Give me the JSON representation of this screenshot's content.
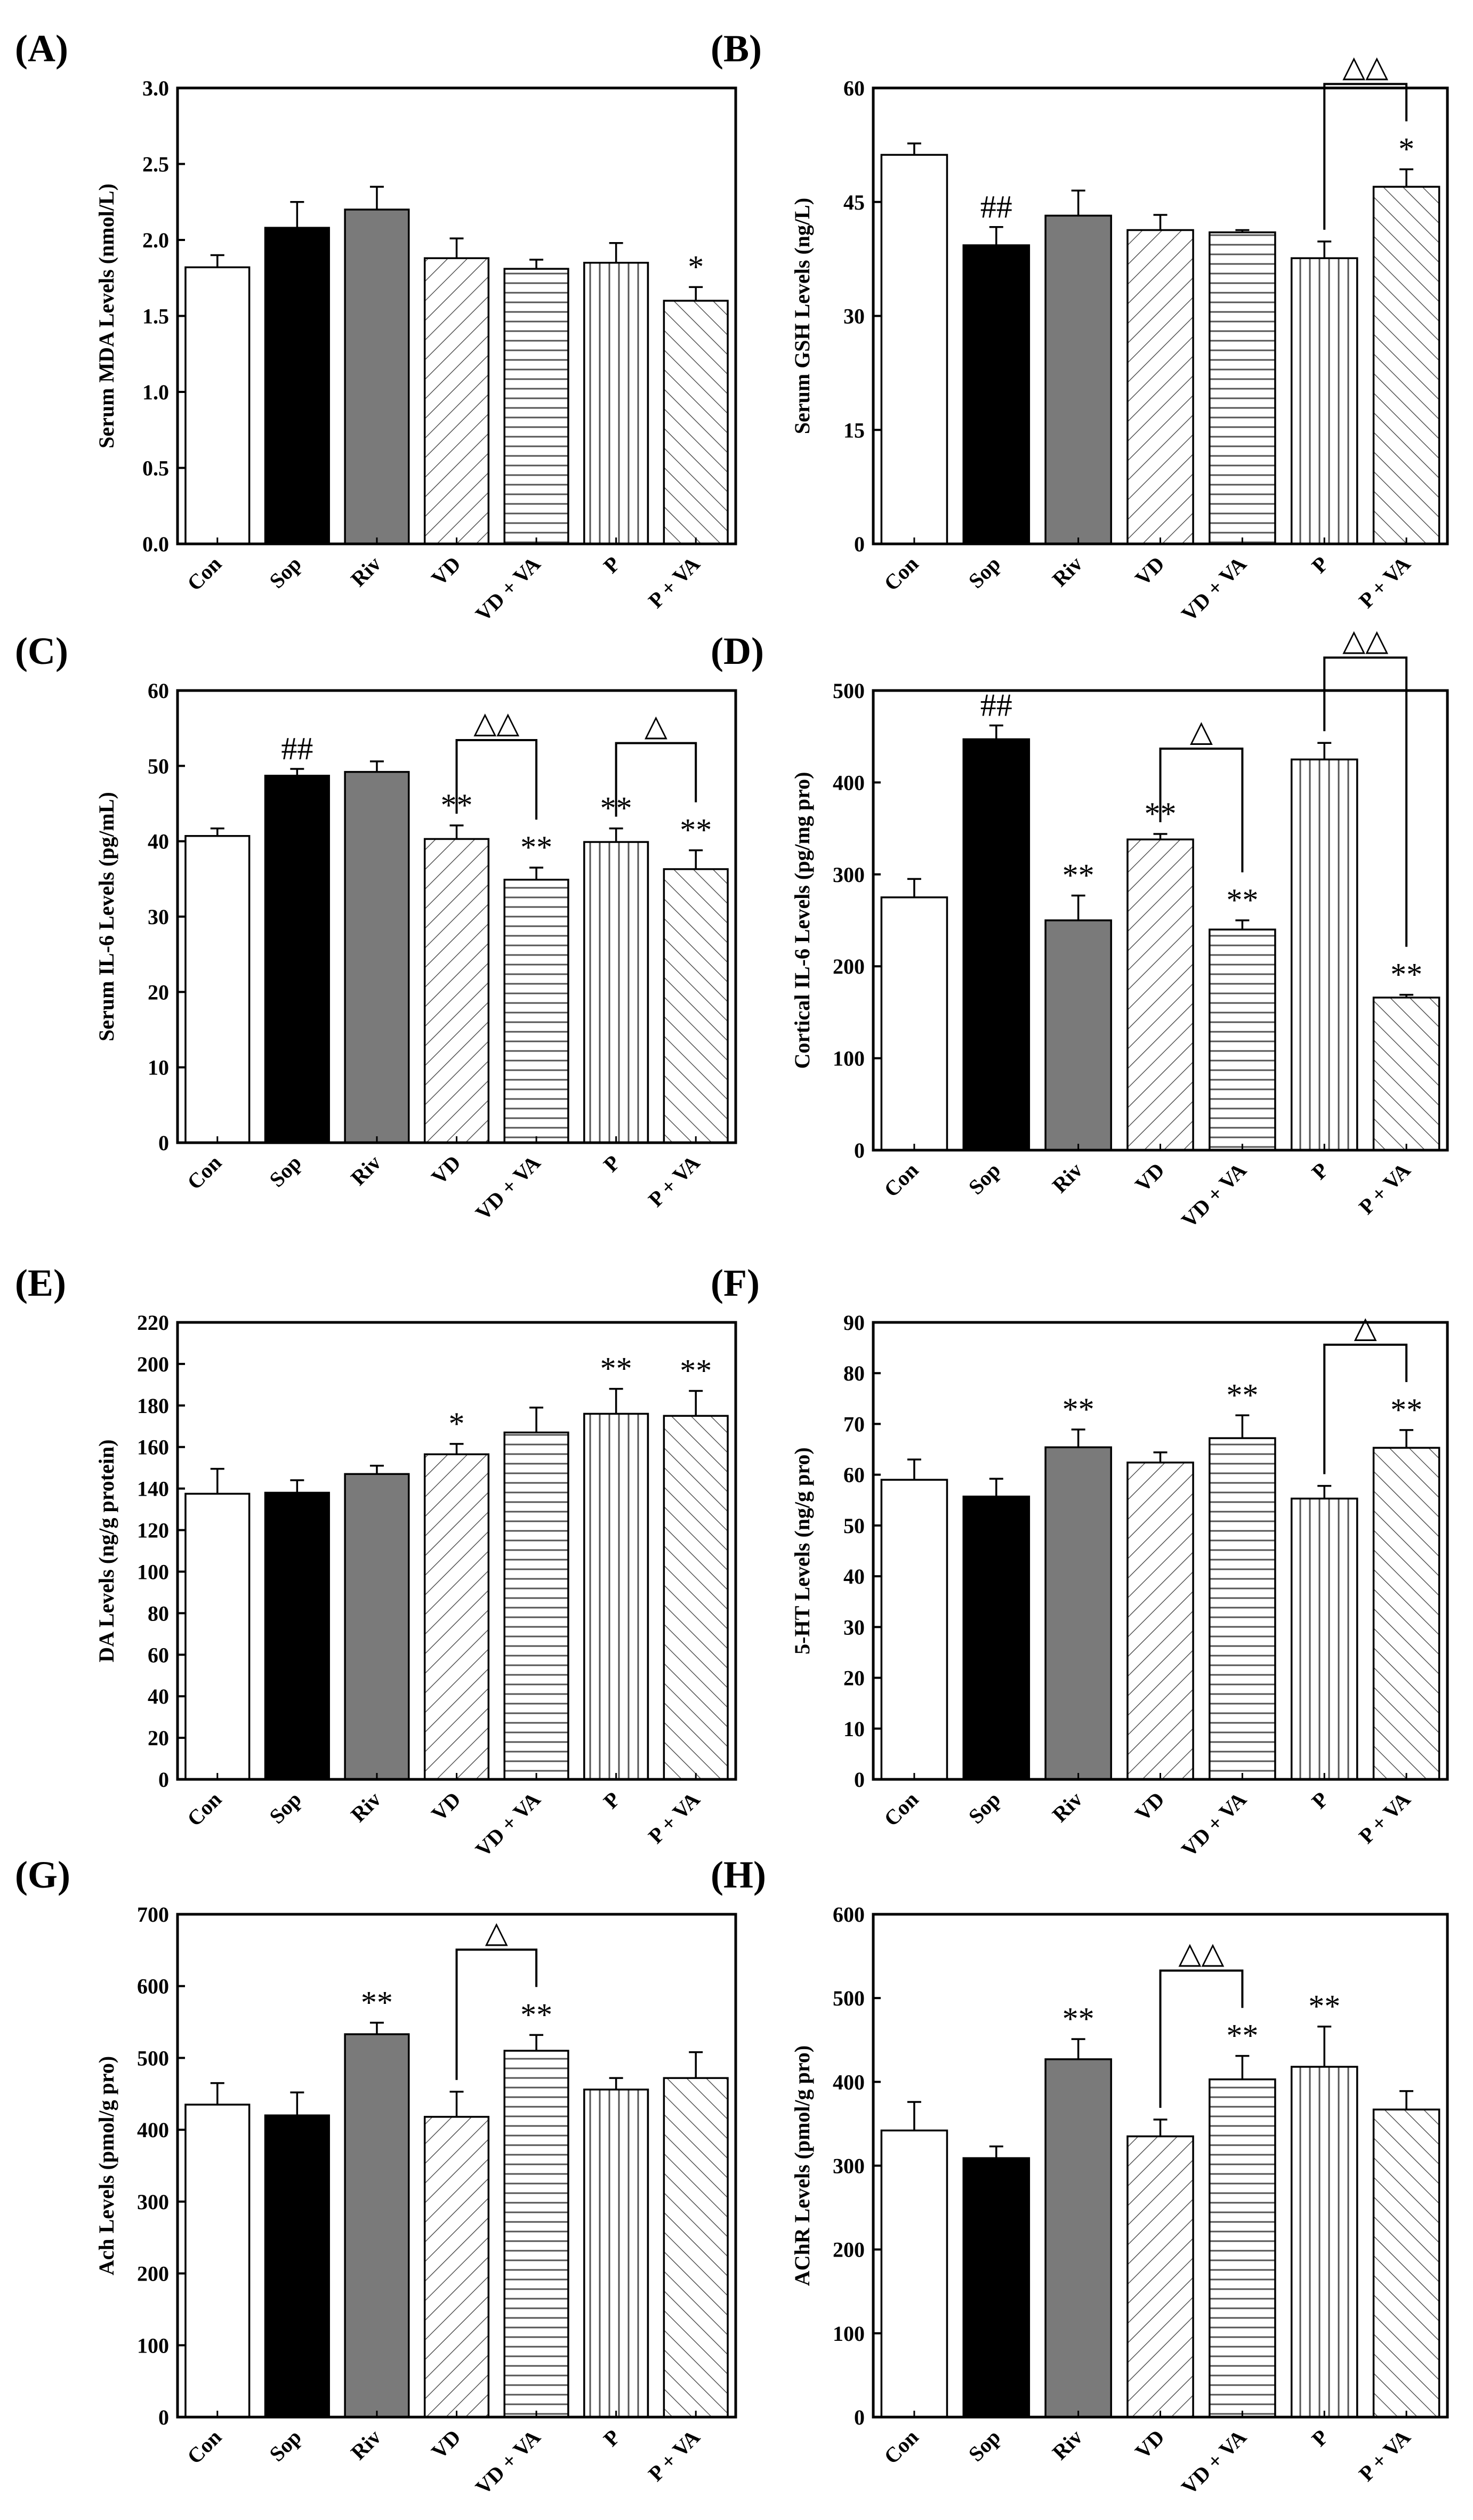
{
  "figure": {
    "panel_order": [
      "A",
      "B",
      "C",
      "D",
      "E",
      "F",
      "G",
      "H"
    ]
  },
  "chart_data": [
    {
      "panel": "(A)",
      "type": "bar",
      "categories": [
        "Con",
        "Sop",
        "Riv",
        "VD",
        "VD + VA",
        "P",
        "P + VA"
      ],
      "values": [
        1.82,
        2.08,
        2.2,
        1.88,
        1.81,
        1.85,
        1.6
      ],
      "errors": [
        0.08,
        0.17,
        0.15,
        0.13,
        0.06,
        0.13,
        0.09
      ],
      "ylabel": "Serum MDA Levels (nmol/L)",
      "ylim": [
        0,
        3.0
      ],
      "yticks": [
        "0.0",
        "0.5",
        "1.0",
        "1.5",
        "2.0",
        "2.5",
        "3.0"
      ],
      "annotations": [
        {
          "bar": 6,
          "text": "*"
        }
      ],
      "brackets": []
    },
    {
      "panel": "(B)",
      "type": "bar",
      "categories": [
        "Con",
        "Sop",
        "Riv",
        "VD",
        "VD + VA",
        "P",
        "P + VA"
      ],
      "values": [
        51.2,
        39.3,
        43.2,
        41.3,
        41.0,
        37.6,
        47.0
      ],
      "errors": [
        1.5,
        2.4,
        3.3,
        2.0,
        0.3,
        2.2,
        2.3
      ],
      "ylabel": "Serum GSH Levels (ng/L)",
      "ylim": [
        0,
        60
      ],
      "yticks": [
        "0",
        "15",
        "30",
        "45",
        "60"
      ],
      "annotations": [
        {
          "bar": 1,
          "text": "##"
        },
        {
          "bar": 6,
          "text": "*"
        }
      ],
      "brackets": [
        {
          "from": 5,
          "to": 6,
          "text": "△△"
        }
      ]
    },
    {
      "panel": "(C)",
      "type": "bar",
      "categories": [
        "Con",
        "Sop",
        "Riv",
        "VD",
        "VD + VA",
        "P",
        "P + VA"
      ],
      "values": [
        40.7,
        48.7,
        49.2,
        40.3,
        34.9,
        39.9,
        36.3
      ],
      "errors": [
        1.0,
        0.9,
        1.4,
        1.8,
        1.6,
        1.8,
        2.5
      ],
      "ylabel": "Serum IL-6 Levels (pg/mL)",
      "ylim": [
        0,
        60
      ],
      "yticks": [
        "0",
        "10",
        "20",
        "30",
        "40",
        "50",
        "60"
      ],
      "annotations": [
        {
          "bar": 1,
          "text": "##"
        },
        {
          "bar": 3,
          "text": "**"
        },
        {
          "bar": 4,
          "text": "**"
        },
        {
          "bar": 5,
          "text": "**"
        },
        {
          "bar": 6,
          "text": "**"
        }
      ],
      "brackets": [
        {
          "from": 3,
          "to": 4,
          "text": "△△"
        },
        {
          "from": 5,
          "to": 6,
          "text": "△"
        }
      ]
    },
    {
      "panel": "(D)",
      "type": "bar",
      "categories": [
        "Con",
        "Sop",
        "Riv",
        "VD",
        "VD + VA",
        "P",
        "P + VA"
      ],
      "values": [
        275,
        447,
        250,
        338,
        240,
        425,
        166
      ],
      "errors": [
        20,
        15,
        27,
        6,
        10,
        18,
        3
      ],
      "ylabel": "Cortical IL-6 Levels (pg/mg pro)",
      "ylim": [
        0,
        500
      ],
      "yticks": [
        "0",
        "100",
        "200",
        "300",
        "400",
        "500"
      ],
      "annotations": [
        {
          "bar": 1,
          "text": "##"
        },
        {
          "bar": 2,
          "text": "**"
        },
        {
          "bar": 3,
          "text": "**"
        },
        {
          "bar": 4,
          "text": "**"
        },
        {
          "bar": 6,
          "text": "**"
        }
      ],
      "brackets": [
        {
          "from": 3,
          "to": 4,
          "text": "△"
        },
        {
          "from": 5,
          "to": 6,
          "text": "△△"
        }
      ]
    },
    {
      "panel": "(E)",
      "type": "bar",
      "categories": [
        "Con",
        "Sop",
        "Riv",
        "VD",
        "VD + VA",
        "P",
        "P + VA"
      ],
      "values": [
        137.5,
        138.0,
        147.0,
        156.5,
        167.0,
        176.0,
        175.0
      ],
      "errors": [
        12,
        6,
        4,
        5,
        12,
        12,
        12
      ],
      "ylabel": "DA Levels (ng/g protein)",
      "ylim": [
        0,
        220
      ],
      "yticks": [
        "0",
        "20",
        "40",
        "60",
        "80",
        "100",
        "120",
        "140",
        "160",
        "180",
        "200",
        "220"
      ],
      "annotations": [
        {
          "bar": 3,
          "text": "*"
        },
        {
          "bar": 5,
          "text": "**"
        },
        {
          "bar": 6,
          "text": "**"
        }
      ],
      "brackets": []
    },
    {
      "panel": "(F)",
      "type": "bar",
      "categories": [
        "Con",
        "Sop",
        "Riv",
        "VD",
        "VD + VA",
        "P",
        "P + VA"
      ],
      "values": [
        59.0,
        55.7,
        65.4,
        62.4,
        67.2,
        55.3,
        65.3
      ],
      "errors": [
        4.0,
        3.5,
        3.5,
        2.0,
        4.5,
        2.5,
        3.5
      ],
      "ylabel": "5-HT Levels (ng/g pro)",
      "ylim": [
        0,
        90
      ],
      "yticks": [
        "0",
        "10",
        "20",
        "30",
        "40",
        "50",
        "60",
        "70",
        "80",
        "90"
      ],
      "annotations": [
        {
          "bar": 2,
          "text": "**"
        },
        {
          "bar": 4,
          "text": "**"
        },
        {
          "bar": 6,
          "text": "**"
        }
      ],
      "brackets": [
        {
          "from": 5,
          "to": 6,
          "text": "△"
        }
      ]
    },
    {
      "panel": "(G)",
      "type": "bar",
      "categories": [
        "Con",
        "Sop",
        "Riv",
        "VD",
        "VD + VA",
        "P",
        "P + VA"
      ],
      "values": [
        435,
        420,
        533,
        418,
        510,
        456,
        472
      ],
      "errors": [
        30,
        32,
        16,
        35,
        22,
        16,
        36
      ],
      "ylabel": "Ach Levels (pmol/g pro)",
      "ylim": [
        0,
        700
      ],
      "yticks": [
        "0",
        "100",
        "200",
        "300",
        "400",
        "500",
        "600",
        "700"
      ],
      "annotations": [
        {
          "bar": 2,
          "text": "**"
        },
        {
          "bar": 4,
          "text": "**"
        }
      ],
      "brackets": [
        {
          "from": 3,
          "to": 4,
          "text": "△"
        }
      ]
    },
    {
      "panel": "(H)",
      "type": "bar",
      "categories": [
        "Con",
        "Sop",
        "Riv",
        "VD",
        "VD + VA",
        "P",
        "P + VA"
      ],
      "values": [
        342,
        309,
        427,
        335,
        403,
        418,
        367
      ],
      "errors": [
        34,
        14,
        24,
        20,
        28,
        48,
        22
      ],
      "ylabel": "AChR Levels (pmol/g pro)",
      "ylim": [
        0,
        600
      ],
      "yticks": [
        "0",
        "100",
        "200",
        "300",
        "400",
        "500",
        "600"
      ],
      "annotations": [
        {
          "bar": 2,
          "text": "**"
        },
        {
          "bar": 4,
          "text": "**"
        },
        {
          "bar": 5,
          "text": "**"
        }
      ],
      "brackets": [
        {
          "from": 3,
          "to": 4,
          "text": "△△"
        }
      ]
    }
  ]
}
